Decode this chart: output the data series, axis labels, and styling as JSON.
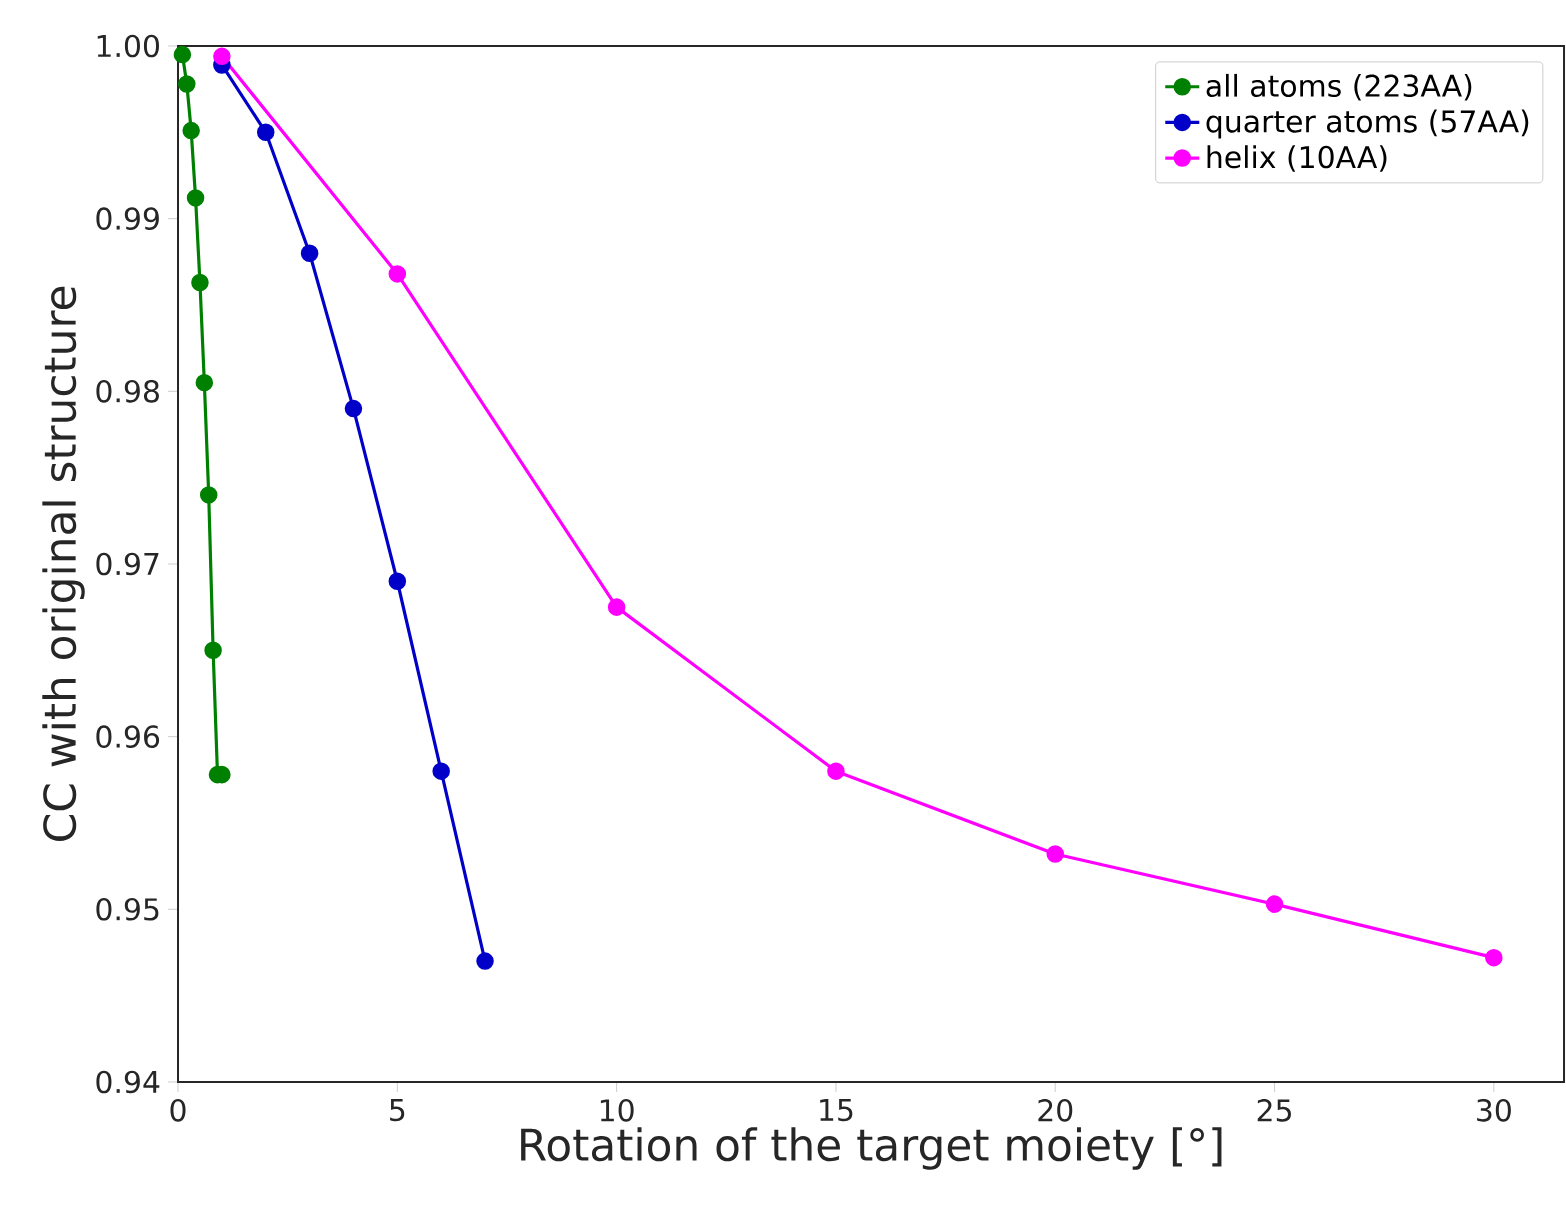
{
  "chart_data": {
    "type": "line",
    "xlabel": "Rotation of the target moiety [°]",
    "ylabel": "CC with original structure",
    "xlim": [
      0,
      31.6
    ],
    "xticks": [
      0,
      5,
      10,
      15,
      20,
      25,
      30
    ],
    "ylim": [
      0.94,
      1.0
    ],
    "yticks": [
      0.94,
      0.95,
      0.96,
      0.97,
      0.98,
      0.99,
      {
        "value": 1.0,
        "label": "1.00"
      }
    ],
    "legend": "top right",
    "marker": "circle",
    "line_style": "solid",
    "grid": false,
    "series": [
      {
        "name": "all atoms (223AA)",
        "color": "#008000",
        "x": [
          0.1,
          0.2,
          0.3,
          0.4,
          0.5,
          0.6,
          0.7,
          0.8,
          0.9,
          1.0
        ],
        "values": [
          0.9995,
          0.9978,
          0.9951,
          0.9912,
          0.9863,
          0.9805,
          0.974,
          0.965,
          0.9578,
          0.9578
        ]
      },
      {
        "name": "quarter atoms (57AA)",
        "color": "#0000c8",
        "x": [
          1,
          2,
          3,
          4,
          5,
          6,
          7
        ],
        "values": [
          0.9989,
          0.995,
          0.988,
          0.979,
          0.969,
          0.958,
          0.947
        ]
      },
      {
        "name": "helix (10AA)",
        "color": "#ff00ff",
        "x": [
          1,
          5,
          10,
          15,
          20,
          25,
          30
        ],
        "values": [
          0.9994,
          0.9868,
          0.9675,
          0.958,
          0.9532,
          0.9503,
          0.9472
        ]
      }
    ]
  }
}
